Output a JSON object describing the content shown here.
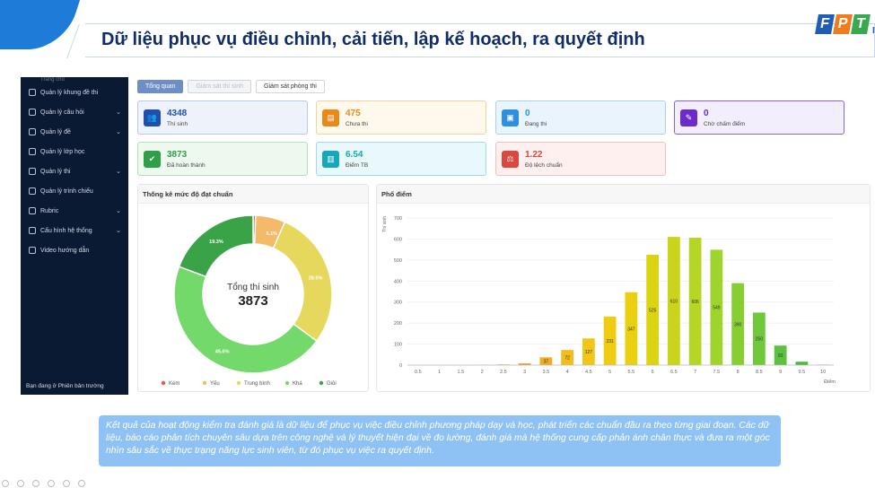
{
  "slide": {
    "title": "Dữ liệu phục vụ điều chỉnh, cải tiến, lập kế hoạch, ra quyết định",
    "logo_letters": [
      "F",
      "P",
      "T"
    ],
    "logo_suffix": "IS",
    "note": "Kết quả của hoạt động kiểm tra đánh giá là dữ liệu để phục vụ việc điều chỉnh phương pháp dạy và học, phát triển các chuẩn đầu ra theo từng giai đoạn. Các dữ liệu, báo cáo phân tích chuyên sâu dựa trên công nghệ và lý thuyết hiện đại về đo lường, đánh giá mà hệ thống cung cấp phản ánh chân thực và đưa ra một góc nhìn sâu sắc về thực trạng năng lực sinh viên, từ đó phục vụ việc ra quyết định.",
    "accent_color": "#1e7bd8"
  },
  "sidebar": {
    "top_clipped": "Trang chủ",
    "items": [
      {
        "label": "Quản lý khung đề thi",
        "icon": "layout-icon",
        "chevron": false
      },
      {
        "label": "Quản lý câu hỏi",
        "icon": "question-icon",
        "chevron": true
      },
      {
        "label": "Quản lý đề",
        "icon": "document-icon",
        "chevron": true
      },
      {
        "label": "Quản lý lớp học",
        "icon": "class-icon",
        "chevron": false
      },
      {
        "label": "Quản lý thi",
        "icon": "clock-icon",
        "chevron": true
      },
      {
        "label": "Quản lý trình chiếu",
        "icon": "presentation-icon",
        "chevron": false
      },
      {
        "label": "Rubric",
        "icon": "rubric-icon",
        "chevron": true
      },
      {
        "label": "Cấu hình hệ thống",
        "icon": "gear-icon",
        "chevron": true
      },
      {
        "label": "Video hướng dẫn",
        "icon": "play-icon",
        "chevron": false
      }
    ],
    "footer": "Bạn đang ở Phiên bản trường"
  },
  "tabs": [
    {
      "label": "Tổng quan",
      "state": "active"
    },
    {
      "label": "Giám sát thí sinh",
      "state": "disabled"
    },
    {
      "label": "Giám sát phòng thi",
      "state": "normal"
    }
  ],
  "stats": [
    {
      "value": "4348",
      "label": "Thí sinh",
      "color": "#1f4fa8",
      "bg": "#eef3fb",
      "border": "#b9cbe9",
      "icon": "users-icon",
      "glyph": "👥"
    },
    {
      "value": "475",
      "label": "Chưa thi",
      "color": "#e88a1a",
      "bg": "#fff8ec",
      "border": "#f3d49a",
      "icon": "pending-icon",
      "glyph": "▤"
    },
    {
      "value": "0",
      "label": "Đang thi",
      "color": "#2e8fe0",
      "bg": "#eaf4fd",
      "border": "#a9d1f4",
      "icon": "in-progress-icon",
      "glyph": "▣"
    },
    {
      "value": "0",
      "label": "Chờ chấm điểm",
      "color": "#6a2bc9",
      "bg": "#f3eefc",
      "border": "#8b63d6",
      "icon": "pen-icon",
      "glyph": "✎"
    },
    {
      "value": "3873",
      "label": "Đã hoàn thành",
      "color": "#2e9e47",
      "bg": "#edf8ef",
      "border": "#b1e0bb",
      "icon": "check-icon",
      "glyph": "✔"
    },
    {
      "value": "6.54",
      "label": "Điểm TB",
      "color": "#17a7b8",
      "bg": "#e9f8fa",
      "border": "#9fdde6",
      "icon": "score-icon",
      "glyph": "▥"
    },
    {
      "value": "1.22",
      "label": "Độ lệch chuẩn",
      "color": "#d9473f",
      "bg": "#fdf0ef",
      "border": "#f1c1bd",
      "icon": "balance-icon",
      "glyph": "⚖"
    }
  ],
  "donut_panel": {
    "title": "Thống kê mức độ đạt chuẩn",
    "center_label": "Tổng thí sinh",
    "center_value": "3873"
  },
  "hist_panel": {
    "title": "Phổ điểm"
  },
  "chart_data": [
    {
      "type": "pie",
      "title": "Thống kê mức độ đạt chuẩn",
      "categories": [
        "Kém",
        "Yếu",
        "Trung bình",
        "Khá",
        "Giỏi"
      ],
      "values": [
        0.5,
        6.1,
        28.5,
        45.6,
        19.3
      ],
      "value_labels": [
        "0.5%",
        "6.1%",
        "28.5%",
        "45.6%",
        "19.3%"
      ],
      "colors": [
        "#e8574a",
        "#f5b96a",
        "#e6d85c",
        "#73d96a",
        "#3aa347"
      ],
      "legend_position": "bottom"
    },
    {
      "type": "bar",
      "title": "Phổ điểm",
      "ylabel": "Thí sinh",
      "xlabel": "Điểm",
      "ylim": [
        0,
        700
      ],
      "yticks": [
        0,
        100,
        200,
        300,
        400,
        500,
        600,
        700
      ],
      "grid": true,
      "categories": [
        "0.5",
        "1",
        "1.5",
        "2",
        "2.5",
        "3",
        "3.5",
        "4",
        "4.5",
        "5",
        "5.5",
        "6",
        "6.5",
        "7",
        "7.5",
        "8",
        "8.5",
        "9",
        "9.5",
        "10"
      ],
      "values": [
        0,
        0,
        0,
        1,
        3,
        8,
        37,
        72,
        127,
        231,
        347,
        525,
        610,
        606,
        549,
        390,
        250,
        93,
        16,
        2
      ],
      "labeled_values": [
        false,
        false,
        false,
        false,
        false,
        false,
        true,
        true,
        true,
        true,
        true,
        true,
        true,
        true,
        true,
        true,
        true,
        true,
        false,
        false
      ],
      "colors": [
        "#e8574a",
        "#e8574a",
        "#e8574a",
        "#ec7b3c",
        "#ef8c33",
        "#f09a2a",
        "#f2ad23",
        "#f4bd1c",
        "#f1c616",
        "#efcc12",
        "#e9d010",
        "#dcd312",
        "#c9d51a",
        "#b4d624",
        "#9fd42c",
        "#86cf33",
        "#6fc93a",
        "#5bc13e",
        "#4bb942",
        "#3eb045"
      ]
    }
  ]
}
